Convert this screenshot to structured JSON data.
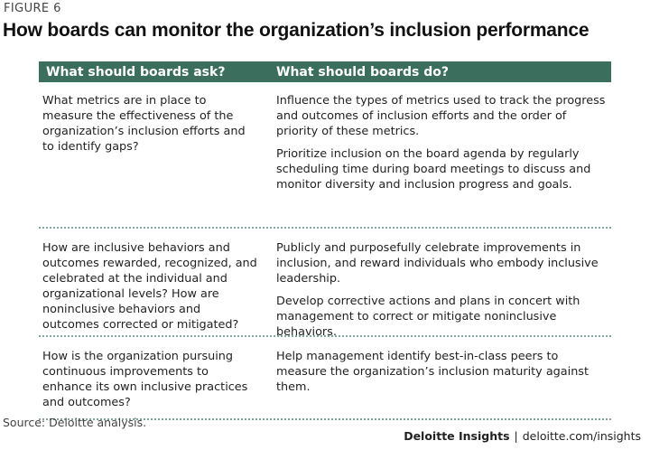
{
  "figure_label": "FIGURE 6",
  "title": "How boards can monitor the organization’s inclusion performance",
  "table": {
    "headers": [
      "What should boards ask?",
      "What should boards do?"
    ],
    "rows": [
      {
        "question": "What metrics are in place to measure the effectiveness of the organization’s inclusion efforts and to identify gaps?",
        "actions": [
          "Influence the types of metrics used to track the progress and outcomes of inclusion efforts and the order of priority of these metrics.",
          "Prioritize inclusion on the board agenda by regularly scheduling time during board meetings to discuss and monitor diversity and inclusion progress and goals."
        ]
      },
      {
        "question": "How are inclusive behaviors and outcomes rewarded, recognized, and celebrated at the individual and organizational levels? How are noninclusive behaviors and outcomes corrected or mitigated?",
        "actions": [
          "Publicly and purposefully celebrate improvements in inclusion, and reward individuals who embody inclusive leadership.",
          "Develop corrective actions and plans in concert with management to correct or mitigate noninclusive behaviors."
        ]
      },
      {
        "question": "How is the organization pursuing continuous improvements to enhance its own inclusive practices and outcomes?",
        "actions": [
          "Help management identify best-in-class peers to measure the organization’s inclusion maturity against them."
        ]
      }
    ]
  },
  "source": "Source: Deloitte analysis.",
  "footer": {
    "brand": "Deloitte Insights",
    "separator": "|",
    "url": "deloitte.com/insights"
  },
  "colors": {
    "header_bg": "#3b6e5c",
    "divider": "#7fa89a"
  }
}
